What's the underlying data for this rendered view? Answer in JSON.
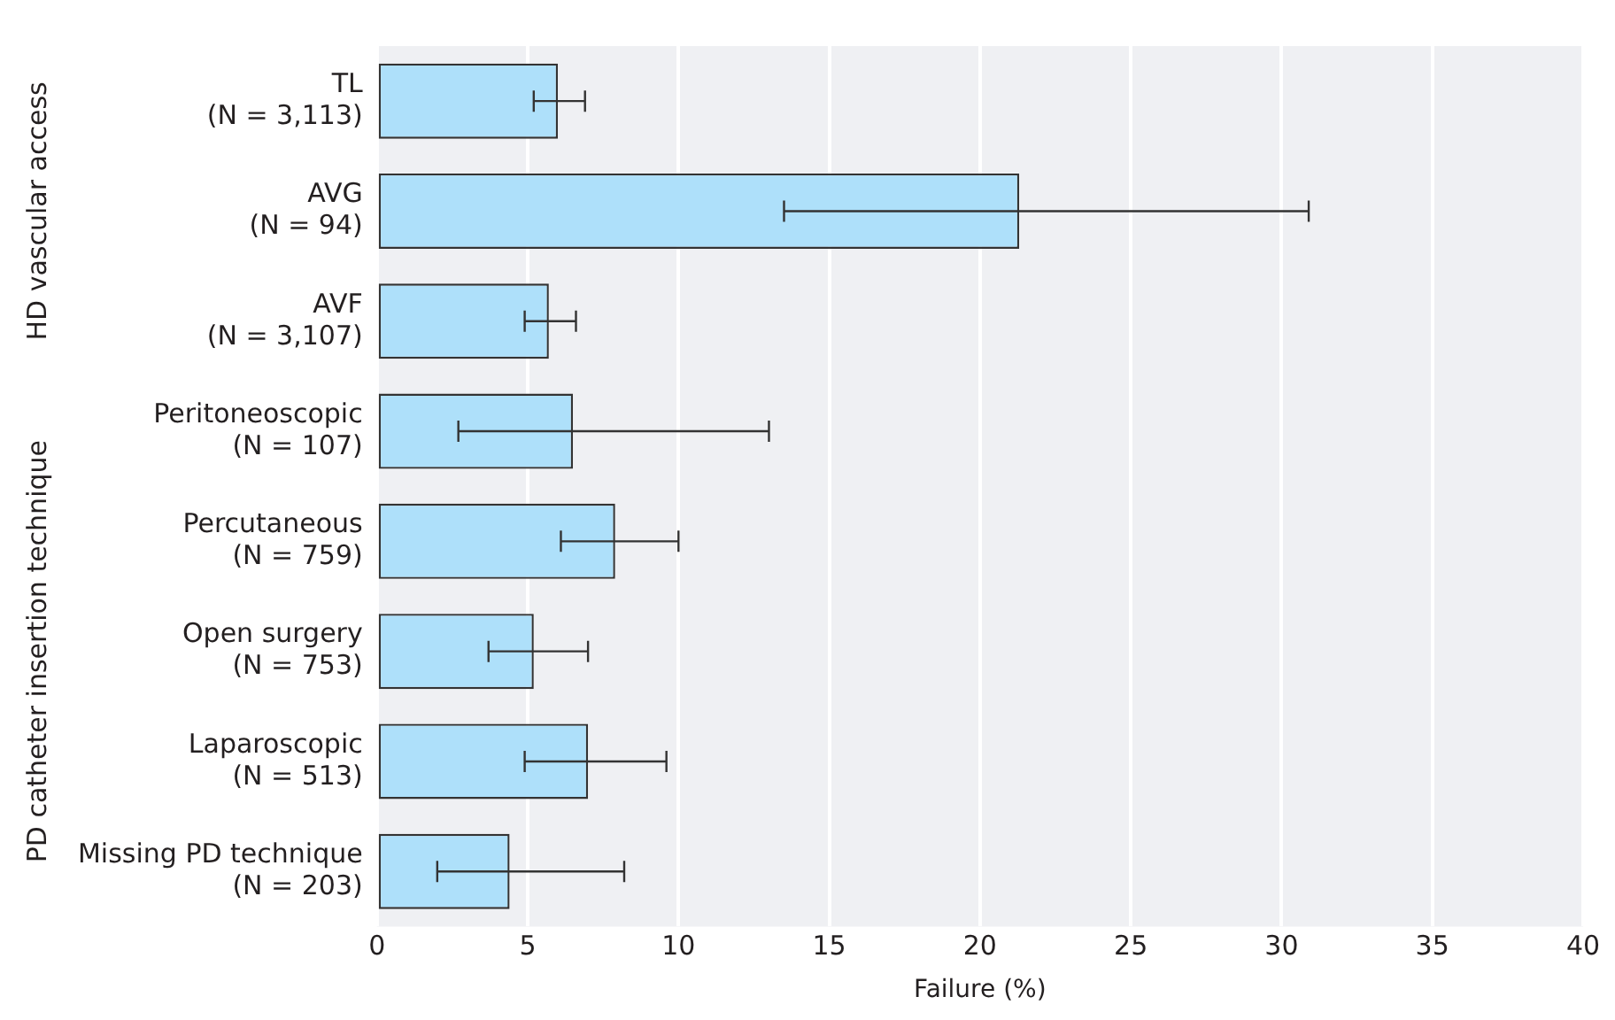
{
  "chart_data": {
    "type": "bar",
    "orientation": "horizontal",
    "xlabel": "Failure (%)",
    "categories": [
      "TL\n(N = 3,113)",
      "AVG\n(N = 94)",
      "AVF\n(N = 3,107)",
      "Peritoneoscopic\n(N = 107)",
      "Percutaneous\n(N = 759)",
      "Open surgery\n(N = 753)",
      "Laparoscopic\n(N = 513)",
      "Missing PD technique\n(N = 203)"
    ],
    "values": [
      6.0,
      21.3,
      5.7,
      6.5,
      7.9,
      5.2,
      7.0,
      4.4
    ],
    "errors": [
      [
        5.2,
        6.9
      ],
      [
        13.5,
        30.9
      ],
      [
        4.9,
        6.6
      ],
      [
        2.7,
        13.0
      ],
      [
        6.1,
        10.0
      ],
      [
        3.7,
        7.0
      ],
      [
        4.9,
        9.6
      ],
      [
        2.0,
        8.2
      ]
    ],
    "color": "#aee0fa",
    "xlim": [
      0,
      40
    ],
    "xticks": [
      0,
      5,
      10,
      15,
      20,
      25,
      30,
      35,
      40
    ],
    "grid": "x",
    "legend": false,
    "annotations": [
      "HD vascular access",
      "PD catheter insertion technique"
    ]
  }
}
